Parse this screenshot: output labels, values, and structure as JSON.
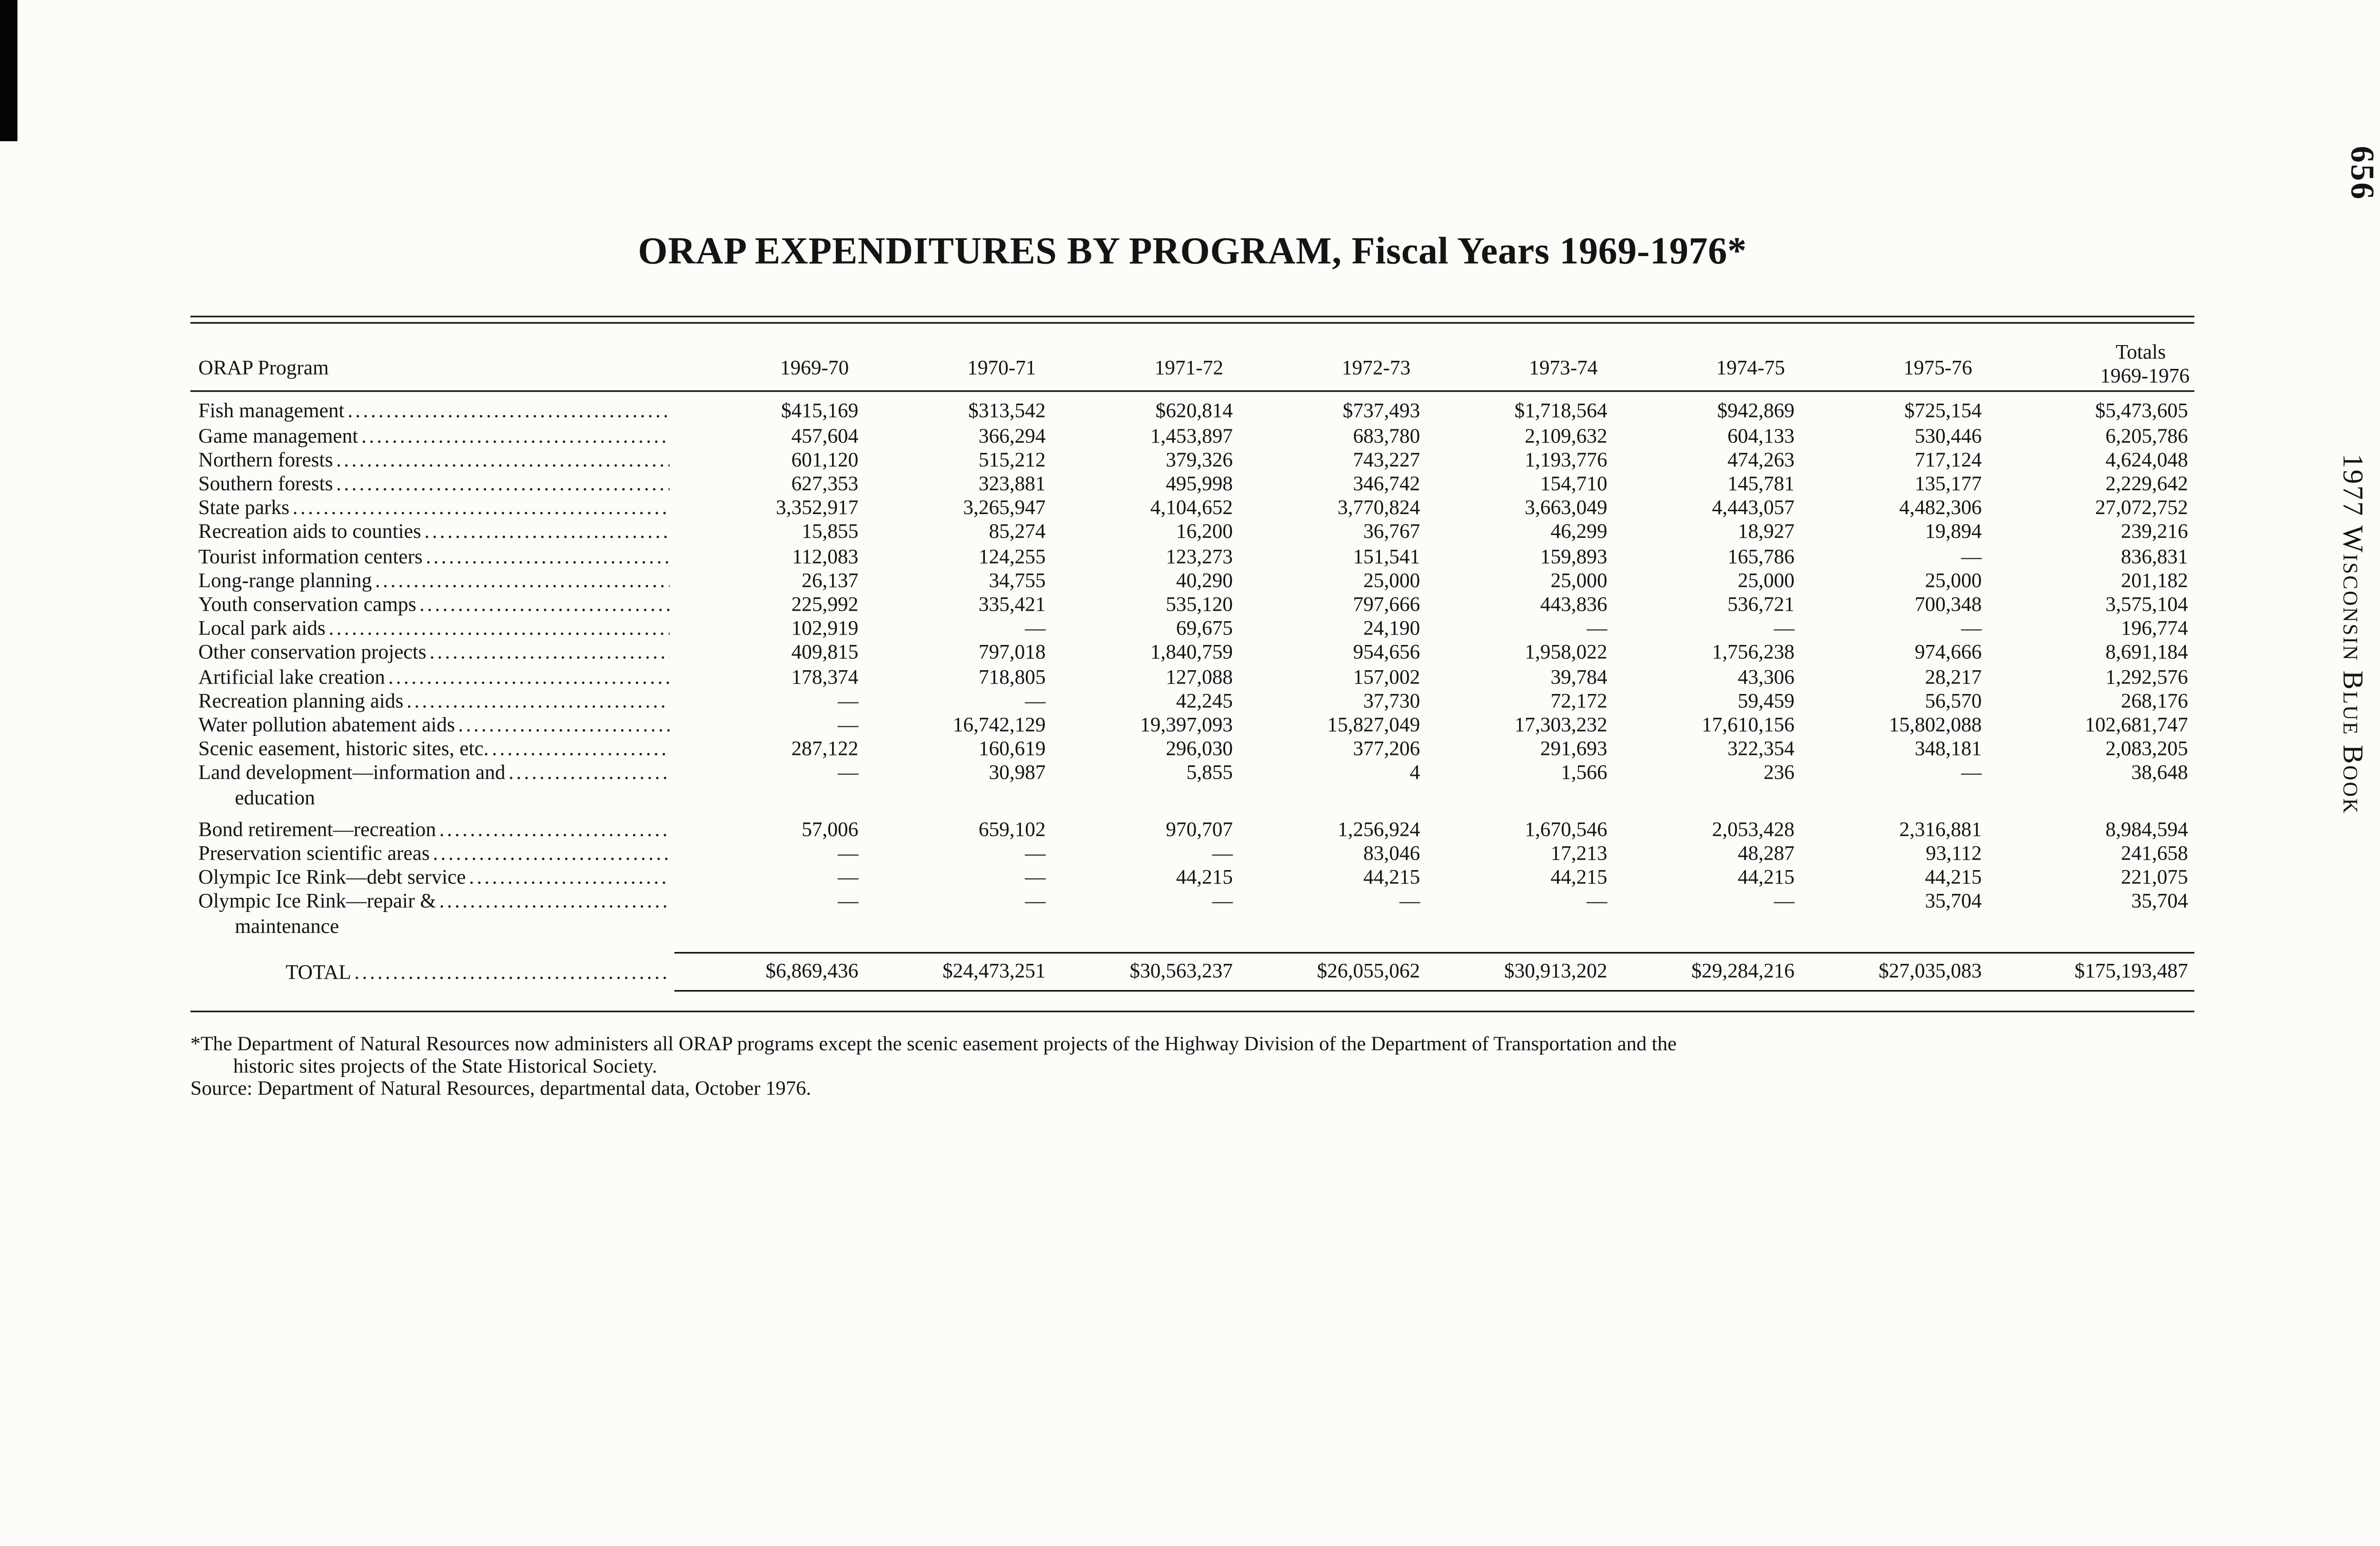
{
  "page": {
    "page_number": "656",
    "running_head": "1977 Wisconsin Blue Book",
    "title": "ORAP EXPENDITURES BY PROGRAM, Fiscal Years 1969-1976*"
  },
  "table": {
    "program_header": "ORAP Program",
    "year_columns": [
      "1969-70",
      "1970-71",
      "1971-72",
      "1972-73",
      "1973-74",
      "1974-75",
      "1975-76"
    ],
    "totals_header": [
      "Totals",
      "1969-1976"
    ],
    "rows": [
      {
        "program": "Fish management",
        "values": [
          "$415,169",
          "$313,542",
          "$620,814",
          "$737,493",
          "$1,718,564",
          "$942,869",
          "$725,154",
          "$5,473,605"
        ]
      },
      {
        "program": "Game management",
        "values": [
          "457,604",
          "366,294",
          "1,453,897",
          "683,780",
          "2,109,632",
          "604,133",
          "530,446",
          "6,205,786"
        ]
      },
      {
        "program": "Northern forests",
        "values": [
          "601,120",
          "515,212",
          "379,326",
          "743,227",
          "1,193,776",
          "474,263",
          "717,124",
          "4,624,048"
        ]
      },
      {
        "program": "Southern forests",
        "values": [
          "627,353",
          "323,881",
          "495,998",
          "346,742",
          "154,710",
          "145,781",
          "135,177",
          "2,229,642"
        ]
      },
      {
        "program": "State parks",
        "values": [
          "3,352,917",
          "3,265,947",
          "4,104,652",
          "3,770,824",
          "3,663,049",
          "4,443,057",
          "4,482,306",
          "27,072,752"
        ]
      },
      {
        "program": "Recreation aids to counties",
        "values": [
          "15,855",
          "85,274",
          "16,200",
          "36,767",
          "46,299",
          "18,927",
          "19,894",
          "239,216"
        ]
      },
      {
        "program": "Tourist information centers",
        "values": [
          "112,083",
          "124,255",
          "123,273",
          "151,541",
          "159,893",
          "165,786",
          "—",
          "836,831"
        ]
      },
      {
        "program": "Long-range planning",
        "values": [
          "26,137",
          "34,755",
          "40,290",
          "25,000",
          "25,000",
          "25,000",
          "25,000",
          "201,182"
        ]
      },
      {
        "program": "Youth conservation camps",
        "values": [
          "225,992",
          "335,421",
          "535,120",
          "797,666",
          "443,836",
          "536,721",
          "700,348",
          "3,575,104"
        ]
      },
      {
        "program": "Local park aids",
        "values": [
          "102,919",
          "—",
          "69,675",
          "24,190",
          "—",
          "—",
          "—",
          "196,774"
        ]
      },
      {
        "program": "Other conservation projects",
        "values": [
          "409,815",
          "797,018",
          "1,840,759",
          "954,656",
          "1,958,022",
          "1,756,238",
          "974,666",
          "8,691,184"
        ]
      },
      {
        "program": "Artificial lake creation",
        "values": [
          "178,374",
          "718,805",
          "127,088",
          "157,002",
          "39,784",
          "43,306",
          "28,217",
          "1,292,576"
        ]
      },
      {
        "program": "Recreation planning aids",
        "values": [
          "—",
          "—",
          "42,245",
          "37,730",
          "72,172",
          "59,459",
          "56,570",
          "268,176"
        ]
      },
      {
        "program": "Water pollution abatement aids",
        "values": [
          "—",
          "16,742,129",
          "19,397,093",
          "15,827,049",
          "17,303,232",
          "17,610,156",
          "15,802,088",
          "102,681,747"
        ]
      },
      {
        "program": "Scenic easement, historic sites, etc.",
        "values": [
          "287,122",
          "160,619",
          "296,030",
          "377,206",
          "291,693",
          "322,354",
          "348,181",
          "2,083,205"
        ]
      },
      {
        "program": "Land development—information and",
        "program_line2": "education",
        "values": [
          "—",
          "30,987",
          "5,855",
          "4",
          "1,566",
          "236",
          "—",
          "38,648"
        ]
      },
      {
        "program": "Bond retirement—recreation",
        "values": [
          "57,006",
          "659,102",
          "970,707",
          "1,256,924",
          "1,670,546",
          "2,053,428",
          "2,316,881",
          "8,984,594"
        ]
      },
      {
        "program": "Preservation scientific areas",
        "values": [
          "—",
          "—",
          "—",
          "83,046",
          "17,213",
          "48,287",
          "93,112",
          "241,658"
        ]
      },
      {
        "program": "Olympic Ice Rink—debt service",
        "values": [
          "—",
          "—",
          "44,215",
          "44,215",
          "44,215",
          "44,215",
          "44,215",
          "221,075"
        ]
      },
      {
        "program": "Olympic Ice Rink—repair &",
        "program_line2": "maintenance",
        "values": [
          "—",
          "—",
          "—",
          "—",
          "—",
          "—",
          "35,704",
          "35,704"
        ]
      }
    ],
    "total_row": {
      "label": "TOTAL",
      "values": [
        "$6,869,436",
        "$24,473,251",
        "$30,563,237",
        "$26,055,062",
        "$30,913,202",
        "$29,284,216",
        "$27,035,083",
        "$175,193,487"
      ]
    }
  },
  "footnotes": {
    "line1": "*The Department of Natural Resources now administers all ORAP programs except the scenic easement projects of the Highway Division of the Department of Transportation and the",
    "line2": "historic sites projects of the State Historical Society.",
    "source": "Source:  Department of Natural Resources, departmental data, October 1976."
  }
}
